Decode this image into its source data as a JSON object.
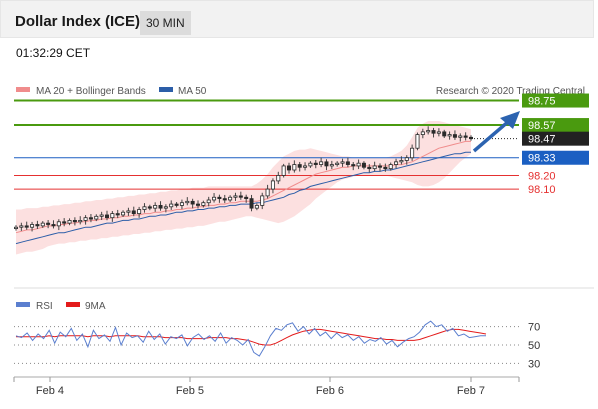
{
  "header": {
    "title": "Dollar Index (ICE)",
    "timeframe": "30 MIN"
  },
  "timestamp": "01:32:29 CET",
  "legend": {
    "ma20": "MA 20 + Bollinger Bands",
    "ma50": "MA 50",
    "credit": "Research © 2020 Trading Central"
  },
  "rsi_legend": {
    "rsi": "RSI",
    "ma": "9MA"
  },
  "colors": {
    "green": "#4a9a0f",
    "blue": "#1b5fc2",
    "red": "#e53030",
    "dark": "#222222",
    "band": "#fbd5d5",
    "arrow": "#2c63b0"
  },
  "chart_data": {
    "type": "candlestick",
    "x_ticks": [
      "Feb 4",
      "Feb 5",
      "Feb 6",
      "Feb 7"
    ],
    "ylim": [
      97.55,
      98.82
    ],
    "levels": [
      {
        "value": "98.75",
        "color": "green",
        "style": "solid"
      },
      {
        "value": "98.57",
        "color": "green",
        "style": "solid"
      },
      {
        "value": "98.47",
        "color": "dark",
        "style": "dotted"
      },
      {
        "value": "98.33",
        "color": "blue",
        "style": "solid"
      },
      {
        "value": "98.20",
        "color": "red",
        "style": "solid"
      },
      {
        "value": "98.10",
        "color": "red",
        "style": "solid"
      }
    ],
    "close_series": [
      97.82,
      97.83,
      97.82,
      97.84,
      97.83,
      97.85,
      97.84,
      97.83,
      97.86,
      97.85,
      97.87,
      97.86,
      97.87,
      97.89,
      97.88,
      97.9,
      97.91,
      97.89,
      97.92,
      97.91,
      97.93,
      97.94,
      97.92,
      97.95,
      97.97,
      97.96,
      97.98,
      97.96,
      97.97,
      97.99,
      97.98,
      98.0,
      98.01,
      97.99,
      97.98,
      98.0,
      98.02,
      98.04,
      98.03,
      98.02,
      98.04,
      98.05,
      98.04,
      98.03,
      97.96,
      97.98,
      98.05,
      98.1,
      98.16,
      98.2,
      98.27,
      98.24,
      98.28,
      98.26,
      98.27,
      98.29,
      98.28,
      98.3,
      98.27,
      98.28,
      98.29,
      98.3,
      98.28,
      98.27,
      98.29,
      98.26,
      98.25,
      98.27,
      98.26,
      98.25,
      98.28,
      98.3,
      98.31,
      98.33,
      98.4,
      98.5,
      98.52,
      98.53,
      98.51,
      98.52,
      98.49,
      98.5,
      98.48,
      98.49,
      98.48,
      98.47
    ],
    "ma20_series": [
      97.78,
      97.79,
      97.8,
      97.8,
      97.81,
      97.82,
      97.83,
      97.83,
      97.84,
      97.84,
      97.85,
      97.85,
      97.86,
      97.86,
      97.87,
      97.87,
      97.88,
      97.88,
      97.89,
      97.89,
      97.9,
      97.9,
      97.91,
      97.91,
      97.92,
      97.92,
      97.93,
      97.93,
      97.94,
      97.94,
      97.95,
      97.95,
      97.96,
      97.96,
      97.97,
      97.97,
      97.98,
      97.98,
      97.99,
      97.99,
      98.0,
      98.0,
      98.01,
      98.01,
      98.01,
      98.01,
      98.02,
      98.03,
      98.05,
      98.07,
      98.09,
      98.11,
      98.13,
      98.15,
      98.17,
      98.19,
      98.21,
      98.22,
      98.23,
      98.24,
      98.25,
      98.26,
      98.26,
      98.27,
      98.27,
      98.27,
      98.27,
      98.27,
      98.27,
      98.27,
      98.27,
      98.28,
      98.28,
      98.29,
      98.3,
      98.32,
      98.34,
      98.36,
      98.38,
      98.4,
      98.41,
      98.42,
      98.43,
      98.44,
      98.45,
      98.45
    ],
    "ma50_series": [
      97.7,
      97.71,
      97.72,
      97.73,
      97.74,
      97.75,
      97.76,
      97.77,
      97.78,
      97.78,
      97.79,
      97.8,
      97.81,
      97.82,
      97.82,
      97.83,
      97.84,
      97.85,
      97.85,
      97.86,
      97.87,
      97.87,
      97.88,
      97.88,
      97.89,
      97.9,
      97.9,
      97.91,
      97.91,
      97.92,
      97.93,
      97.93,
      97.94,
      97.94,
      97.95,
      97.95,
      97.96,
      97.96,
      97.97,
      97.97,
      97.98,
      97.98,
      97.99,
      97.99,
      97.99,
      98.0,
      98.0,
      98.01,
      98.02,
      98.03,
      98.04,
      98.06,
      98.07,
      98.09,
      98.1,
      98.12,
      98.13,
      98.14,
      98.15,
      98.16,
      98.17,
      98.18,
      98.19,
      98.2,
      98.21,
      98.22,
      98.22,
      98.23,
      98.23,
      98.24,
      98.24,
      98.25,
      98.26,
      98.27,
      98.28,
      98.29,
      98.3,
      98.31,
      98.32,
      98.33,
      98.34,
      98.35,
      98.36,
      98.36,
      98.37,
      98.37
    ],
    "band_upper": [
      97.95,
      97.95,
      97.96,
      97.96,
      97.96,
      97.97,
      97.97,
      97.98,
      97.98,
      97.99,
      97.99,
      98.0,
      98.0,
      98.01,
      98.01,
      98.02,
      98.02,
      98.03,
      98.03,
      98.04,
      98.04,
      98.05,
      98.05,
      98.06,
      98.06,
      98.07,
      98.07,
      98.08,
      98.08,
      98.09,
      98.09,
      98.1,
      98.1,
      98.11,
      98.11,
      98.11,
      98.12,
      98.12,
      98.12,
      98.12,
      98.12,
      98.12,
      98.12,
      98.12,
      98.12,
      98.14,
      98.17,
      98.21,
      98.26,
      98.3,
      98.34,
      98.36,
      98.38,
      98.39,
      98.39,
      98.4,
      98.39,
      98.38,
      98.37,
      98.36,
      98.35,
      98.34,
      98.34,
      98.33,
      98.33,
      98.33,
      98.33,
      98.33,
      98.33,
      98.33,
      98.34,
      98.36,
      98.38,
      98.42,
      98.48,
      98.55,
      98.58,
      98.6,
      98.6,
      98.6,
      98.59,
      98.58,
      98.57,
      98.56,
      98.55,
      98.54
    ],
    "band_lower": [
      97.62,
      97.63,
      97.64,
      97.64,
      97.65,
      97.66,
      97.68,
      97.69,
      97.7,
      97.7,
      97.71,
      97.71,
      97.72,
      97.72,
      97.73,
      97.73,
      97.74,
      97.74,
      97.75,
      97.75,
      97.76,
      97.76,
      97.77,
      97.77,
      97.78,
      97.78,
      97.79,
      97.79,
      97.8,
      97.8,
      97.81,
      97.81,
      97.82,
      97.82,
      97.83,
      97.83,
      97.84,
      97.85,
      97.86,
      97.86,
      97.87,
      97.88,
      97.89,
      97.9,
      97.9,
      97.89,
      97.88,
      97.87,
      97.86,
      97.85,
      97.86,
      97.88,
      97.9,
      97.93,
      97.96,
      97.99,
      98.03,
      98.06,
      98.09,
      98.12,
      98.15,
      98.17,
      98.18,
      98.19,
      98.2,
      98.2,
      98.2,
      98.2,
      98.2,
      98.2,
      98.19,
      98.18,
      98.17,
      98.16,
      98.15,
      98.13,
      98.12,
      98.12,
      98.13,
      98.15,
      98.18,
      98.22,
      98.26,
      98.3,
      98.33,
      98.36
    ],
    "rsi": {
      "levels": [
        70,
        50,
        30
      ],
      "rsi_series": [
        60,
        58,
        63,
        55,
        62,
        57,
        66,
        52,
        64,
        59,
        68,
        55,
        62,
        48,
        66,
        57,
        61,
        54,
        69,
        50,
        63,
        58,
        60,
        53,
        65,
        56,
        62,
        51,
        59,
        57,
        61,
        49,
        58,
        62,
        56,
        60,
        54,
        63,
        52,
        58,
        55,
        50,
        56,
        42,
        38,
        48,
        60,
        68,
        66,
        72,
        74,
        65,
        70,
        62,
        68,
        60,
        64,
        57,
        63,
        58,
        61,
        55,
        59,
        52,
        56,
        54,
        58,
        51,
        55,
        48,
        53,
        57,
        59,
        64,
        72,
        76,
        70,
        72,
        65,
        68,
        60,
        62,
        58,
        59,
        60,
        60
      ],
      "ma_series": [
        59,
        59,
        59,
        59,
        59,
        59,
        60,
        59,
        60,
        60,
        60,
        60,
        60,
        59,
        60,
        60,
        60,
        59,
        60,
        60,
        60,
        60,
        60,
        59,
        59,
        59,
        59,
        58,
        58,
        58,
        58,
        57,
        57,
        57,
        57,
        58,
        58,
        58,
        58,
        57,
        57,
        56,
        55,
        53,
        51,
        50,
        50,
        52,
        55,
        58,
        61,
        63,
        65,
        66,
        67,
        67,
        66,
        65,
        64,
        63,
        62,
        61,
        60,
        59,
        58,
        57,
        57,
        56,
        56,
        55,
        55,
        55,
        55,
        56,
        58,
        60,
        62,
        64,
        66,
        67,
        67,
        66,
        65,
        64,
        63,
        62
      ]
    }
  }
}
